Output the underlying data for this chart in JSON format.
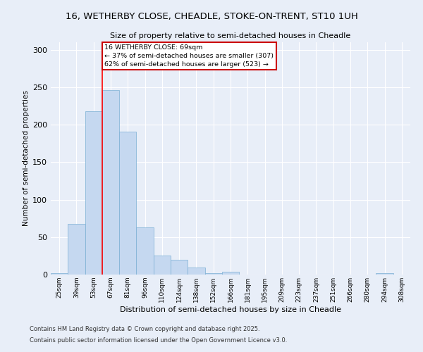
{
  "title_line1": "16, WETHERBY CLOSE, CHEADLE, STOKE-ON-TRENT, ST10 1UH",
  "title_line2": "Size of property relative to semi-detached houses in Cheadle",
  "xlabel": "Distribution of semi-detached houses by size in Cheadle",
  "ylabel": "Number of semi-detached properties",
  "categories": [
    "25sqm",
    "39sqm",
    "53sqm",
    "67sqm",
    "81sqm",
    "96sqm",
    "110sqm",
    "124sqm",
    "138sqm",
    "152sqm",
    "166sqm",
    "181sqm",
    "195sqm",
    "209sqm",
    "223sqm",
    "237sqm",
    "251sqm",
    "266sqm",
    "280sqm",
    "294sqm",
    "308sqm"
  ],
  "values": [
    2,
    68,
    218,
    246,
    191,
    63,
    25,
    20,
    9,
    2,
    4,
    0,
    0,
    0,
    0,
    0,
    0,
    0,
    0,
    2,
    0
  ],
  "bar_color": "#c5d8f0",
  "bar_edge_color": "#7bafd4",
  "property_label": "16 WETHERBY CLOSE: 69sqm",
  "pct_smaller": 37,
  "count_smaller": 307,
  "pct_larger": 62,
  "count_larger": 523,
  "vline_bar_index": 3,
  "annotation_box_color": "#ffffff",
  "annotation_box_edge": "#cc0000",
  "footer_line1": "Contains HM Land Registry data © Crown copyright and database right 2025.",
  "footer_line2": "Contains public sector information licensed under the Open Government Licence v3.0.",
  "ylim": [
    0,
    310
  ],
  "yticks": [
    0,
    50,
    100,
    150,
    200,
    250,
    300
  ],
  "bg_color": "#e8eef8"
}
